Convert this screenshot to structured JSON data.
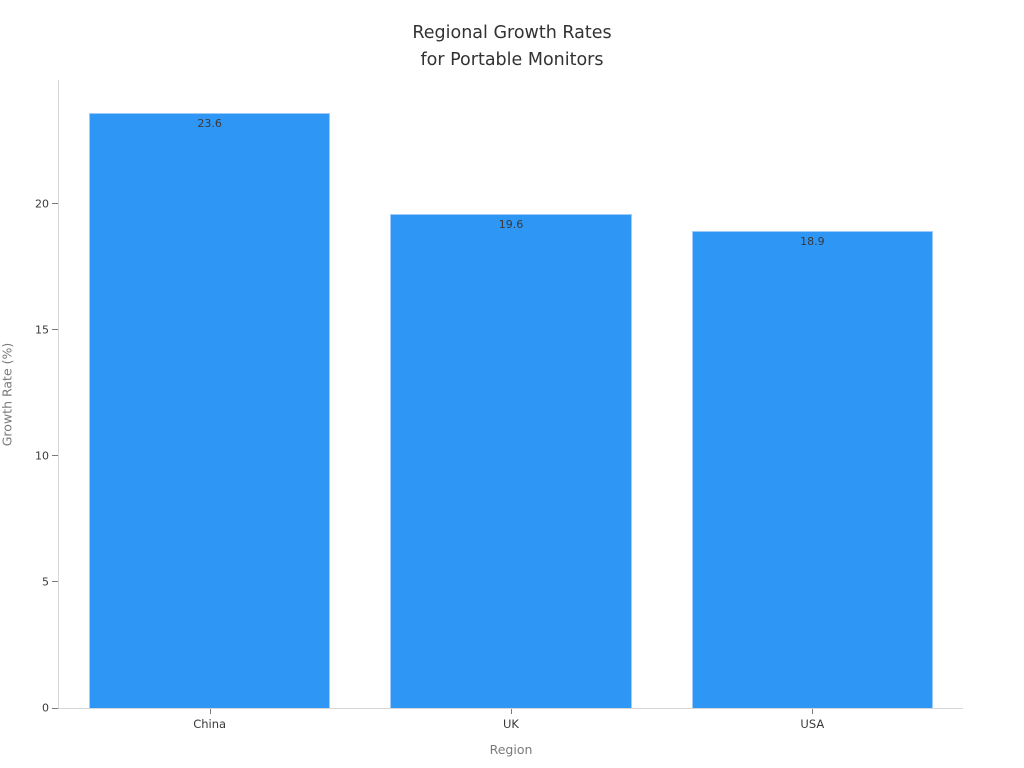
{
  "title": "Regional Growth Rates\nfor Portable Monitors",
  "colors": {
    "background": "#FFFFFF",
    "bar": "#2E96F5",
    "bar_edge": "#9ECBF9",
    "axis_line": "#D6D6D6",
    "tick_mark": "#7A7A7A",
    "tick_label": "#3A3A3A",
    "axis_title": "#7A7A7A",
    "title": "#323232",
    "value_label": "#3A3A3A"
  },
  "chart_data": {
    "type": "bar",
    "title": "Regional Growth Rates\nfor Portable Monitors",
    "categories": [
      "China",
      "UK",
      "USA"
    ],
    "values": [
      23.6,
      19.6,
      18.9
    ],
    "value_labels": [
      "23.6",
      "19.6",
      "18.9"
    ],
    "xlabel": "Region",
    "ylabel": "Growth Rate (%)",
    "yticks": [
      0,
      5,
      10,
      15,
      20
    ],
    "ylim": [
      0,
      24.9
    ],
    "grid": false,
    "legend": "none",
    "bar_color": "#2E96F5",
    "bar_width_fraction": 0.8,
    "value_label_position": "inside-top"
  }
}
